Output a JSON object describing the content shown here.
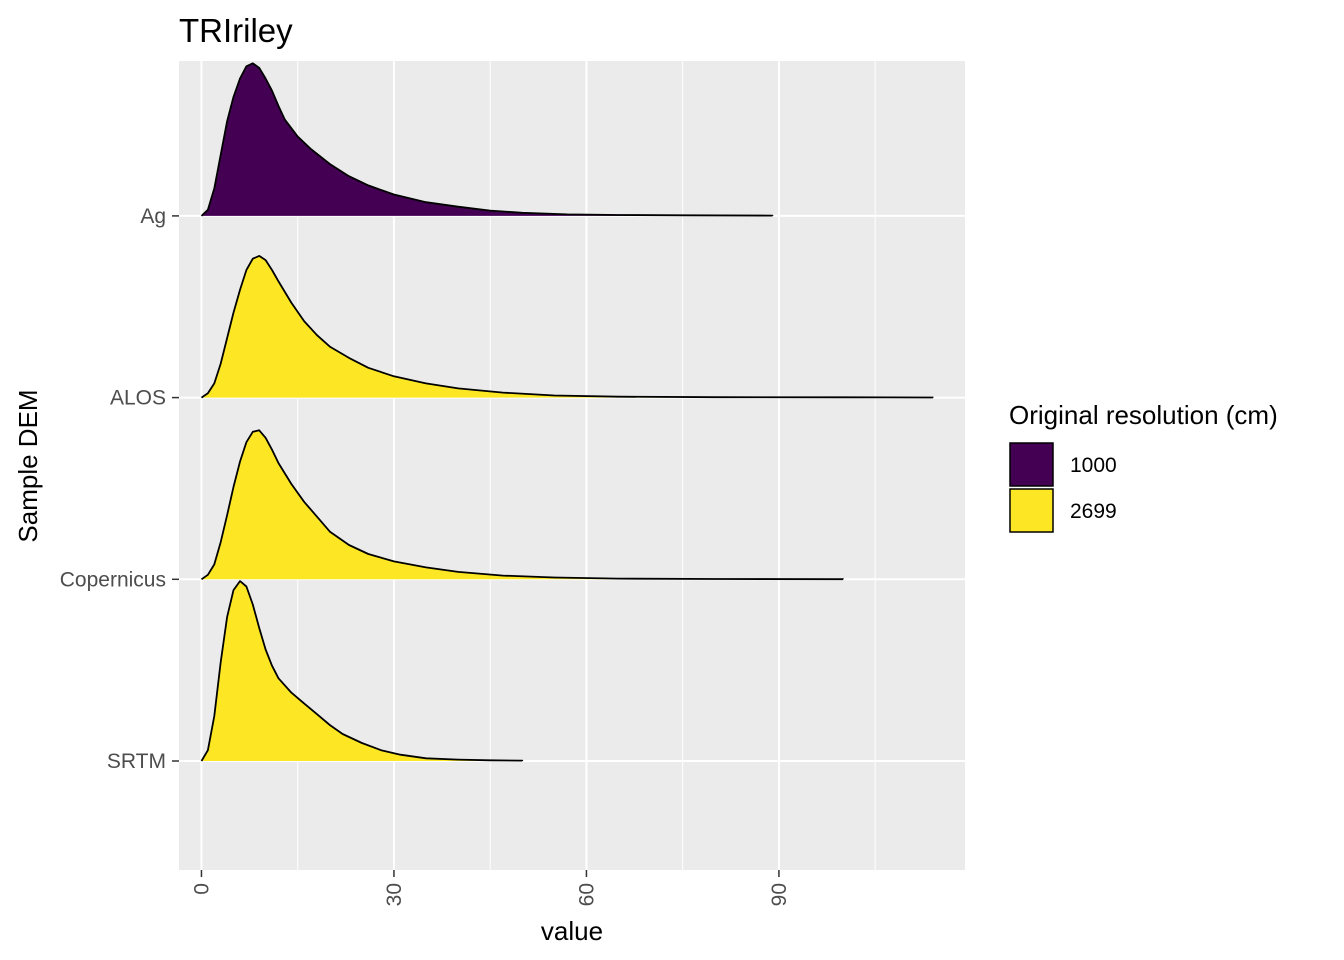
{
  "chart_data": {
    "type": "ridgeline",
    "title": "TRIriley",
    "xlabel": "value",
    "ylabel": "Sample DEM",
    "xlim": [
      -3.5,
      119
    ],
    "x_ticks": [
      0,
      30,
      60,
      90
    ],
    "x_tick_labels": [
      "0",
      "30",
      "60",
      "90"
    ],
    "grid": true,
    "legend": {
      "title": "Original resolution (cm)",
      "position": "right",
      "entries": [
        {
          "label": "1000",
          "color": "#440154"
        },
        {
          "label": "2699",
          "color": "#FDE725"
        }
      ]
    },
    "series": [
      {
        "name": "Ag",
        "resolution": "1000",
        "color": "#440154",
        "peak_height": 0.84,
        "x": [
          0,
          1,
          2,
          3,
          4,
          5,
          6,
          7,
          8,
          9,
          10,
          11,
          12,
          13,
          15,
          17,
          20,
          23,
          26,
          30,
          35,
          40,
          45,
          50,
          57,
          65,
          75,
          89
        ],
        "density": [
          0,
          0.04,
          0.18,
          0.4,
          0.62,
          0.78,
          0.9,
          0.98,
          1.0,
          0.97,
          0.9,
          0.82,
          0.72,
          0.63,
          0.52,
          0.44,
          0.34,
          0.26,
          0.2,
          0.14,
          0.09,
          0.06,
          0.035,
          0.02,
          0.01,
          0.006,
          0.004,
          0.002
        ]
      },
      {
        "name": "ALOS",
        "resolution": "2699",
        "color": "#FDE725",
        "peak_height": 0.78,
        "x": [
          0,
          1,
          2,
          3,
          4,
          5,
          6,
          7,
          8,
          9,
          10,
          11,
          12,
          14,
          16,
          18,
          20,
          23,
          26,
          30,
          35,
          40,
          47,
          55,
          65,
          80,
          100,
          114
        ],
        "density": [
          0,
          0.03,
          0.1,
          0.24,
          0.42,
          0.6,
          0.76,
          0.9,
          0.98,
          1.0,
          0.97,
          0.9,
          0.82,
          0.67,
          0.54,
          0.44,
          0.36,
          0.28,
          0.21,
          0.15,
          0.1,
          0.065,
          0.035,
          0.015,
          0.006,
          0.003,
          0.002,
          0.001
        ]
      },
      {
        "name": "Copernicus",
        "resolution": "2699",
        "color": "#FDE725",
        "peak_height": 0.82,
        "x": [
          0,
          1,
          2,
          3,
          4,
          5,
          6,
          7,
          8,
          9,
          10,
          11,
          12,
          14,
          16,
          18,
          20,
          23,
          26,
          30,
          35,
          40,
          47,
          55,
          65,
          80,
          100
        ],
        "density": [
          0,
          0.03,
          0.1,
          0.25,
          0.43,
          0.62,
          0.79,
          0.92,
          0.99,
          1.0,
          0.95,
          0.87,
          0.78,
          0.64,
          0.52,
          0.42,
          0.32,
          0.23,
          0.17,
          0.12,
          0.08,
          0.05,
          0.025,
          0.012,
          0.005,
          0.002,
          0.001
        ]
      },
      {
        "name": "SRTM",
        "resolution": "2699",
        "color": "#FDE725",
        "peak_height": 0.99,
        "x": [
          0,
          1,
          2,
          3,
          4,
          5,
          6,
          7,
          8,
          9,
          10,
          11,
          12,
          14,
          16,
          18,
          20,
          22,
          25,
          28,
          31,
          35,
          40,
          45,
          50
        ],
        "density": [
          0,
          0.06,
          0.25,
          0.55,
          0.8,
          0.95,
          1.0,
          0.97,
          0.87,
          0.74,
          0.62,
          0.53,
          0.46,
          0.38,
          0.32,
          0.26,
          0.2,
          0.15,
          0.1,
          0.06,
          0.035,
          0.015,
          0.008,
          0.004,
          0.002
        ]
      }
    ]
  }
}
